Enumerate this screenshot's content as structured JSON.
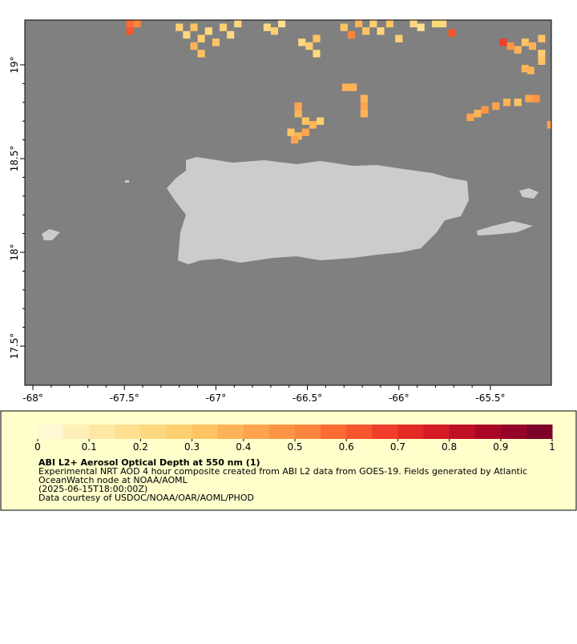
{
  "map": {
    "xlim": [
      -68.044,
      -65.167
    ],
    "ylim": [
      17.291,
      19.239
    ],
    "xticks": [
      {
        "value": -68,
        "label": "-68°"
      },
      {
        "value": -67.5,
        "label": "-67.5°"
      },
      {
        "value": -67,
        "label": "-67°"
      },
      {
        "value": -66.5,
        "label": "-66.5°"
      },
      {
        "value": -66,
        "label": "-66°"
      },
      {
        "value": -65.5,
        "label": "-65.5°"
      }
    ],
    "yticks": [
      {
        "value": 17.5,
        "label": "17.5°"
      },
      {
        "value": 18,
        "label": "18°"
      },
      {
        "value": 18.5,
        "label": "18.5°"
      },
      {
        "value": 19,
        "label": "19°"
      }
    ],
    "aod_cells": [
      [
        -67.47,
        19.22,
        0.55
      ],
      [
        -67.47,
        19.18,
        0.6
      ],
      [
        -67.43,
        19.22,
        0.5
      ],
      [
        -67.2,
        19.2,
        0.25
      ],
      [
        -67.16,
        19.16,
        0.2
      ],
      [
        -67.12,
        19.2,
        0.3
      ],
      [
        -67.08,
        19.14,
        0.25
      ],
      [
        -67.04,
        19.18,
        0.2
      ],
      [
        -67.0,
        19.12,
        0.3
      ],
      [
        -66.96,
        19.2,
        0.25
      ],
      [
        -66.92,
        19.16,
        0.2
      ],
      [
        -67.12,
        19.1,
        0.35
      ],
      [
        -67.08,
        19.06,
        0.3
      ],
      [
        -66.88,
        19.22,
        0.2
      ],
      [
        -66.72,
        19.2,
        0.2
      ],
      [
        -66.68,
        19.18,
        0.25
      ],
      [
        -66.64,
        19.22,
        0.15
      ],
      [
        -66.53,
        19.12,
        0.2
      ],
      [
        -66.49,
        19.1,
        0.25
      ],
      [
        -66.45,
        19.14,
        0.3
      ],
      [
        -66.45,
        19.06,
        0.2
      ],
      [
        -66.3,
        19.2,
        0.3
      ],
      [
        -66.26,
        19.16,
        0.5
      ],
      [
        -66.22,
        19.22,
        0.35
      ],
      [
        -66.18,
        19.18,
        0.3
      ],
      [
        -66.14,
        19.22,
        0.25
      ],
      [
        -66.1,
        19.18,
        0.2
      ],
      [
        -66.05,
        19.22,
        0.3
      ],
      [
        -66.0,
        19.14,
        0.25
      ],
      [
        -65.92,
        19.22,
        0.2
      ],
      [
        -65.88,
        19.2,
        0.15
      ],
      [
        -65.8,
        19.22,
        0.2
      ],
      [
        -65.76,
        19.22,
        0.2
      ],
      [
        -65.71,
        19.17,
        0.6
      ],
      [
        -65.43,
        19.12,
        0.65
      ],
      [
        -65.39,
        19.1,
        0.45
      ],
      [
        -65.35,
        19.08,
        0.35
      ],
      [
        -65.31,
        19.12,
        0.3
      ],
      [
        -65.27,
        19.1,
        0.35
      ],
      [
        -65.22,
        19.14,
        0.3
      ],
      [
        -65.22,
        19.06,
        0.25
      ],
      [
        -65.22,
        19.02,
        0.3
      ],
      [
        -65.31,
        18.98,
        0.35
      ],
      [
        -66.25,
        18.88,
        0.35
      ],
      [
        -66.29,
        18.88,
        0.35
      ],
      [
        -66.55,
        18.78,
        0.4
      ],
      [
        -66.55,
        18.74,
        0.35
      ],
      [
        -66.51,
        18.7,
        0.3
      ],
      [
        -66.47,
        18.68,
        0.35
      ],
      [
        -66.43,
        18.7,
        0.25
      ],
      [
        -66.51,
        18.64,
        0.4
      ],
      [
        -66.55,
        18.62,
        0.35
      ],
      [
        -66.59,
        18.64,
        0.3
      ],
      [
        -66.57,
        18.6,
        0.4
      ],
      [
        -66.19,
        18.82,
        0.35
      ],
      [
        -66.19,
        18.78,
        0.4
      ],
      [
        -66.19,
        18.74,
        0.35
      ],
      [
        -65.61,
        18.72,
        0.4
      ],
      [
        -65.57,
        18.74,
        0.35
      ],
      [
        -65.53,
        18.76,
        0.45
      ],
      [
        -65.47,
        18.78,
        0.4
      ],
      [
        -65.41,
        18.8,
        0.35
      ],
      [
        -65.35,
        18.8,
        0.3
      ],
      [
        -65.29,
        18.82,
        0.4
      ],
      [
        -65.25,
        18.82,
        0.45
      ],
      [
        -65.17,
        18.68,
        0.4
      ],
      [
        -65.28,
        18.97,
        0.35
      ]
    ],
    "colorbar": {
      "range": [
        0,
        1
      ],
      "ticks": [
        0,
        0.1,
        0.2,
        0.3,
        0.4,
        0.5,
        0.6,
        0.7,
        0.8,
        0.9,
        1
      ],
      "colors": [
        "#fff8d4",
        "#fff0b8",
        "#ffe8a4",
        "#fee090",
        "#fed87e",
        "#fecf70",
        "#fec362",
        "#feb456",
        "#fea44c",
        "#fd9444",
        "#fd843c",
        "#fc6c34",
        "#f8562e",
        "#f03e2a",
        "#e42a24",
        "#d41c24",
        "#c01024",
        "#aa0626",
        "#940228",
        "#7c0028"
      ]
    },
    "title": "ABI L2+ Aerosol Optical Depth at 550 nm (1)",
    "description": [
      "Experimental NRT AOD 4 hour composite created from ABI L2 data from GOES-19. Fields generated by Atlantic",
      "OceanWatch node at NOAA/AOML",
      "(2025-06-15T18:00:00Z)",
      "Data courtesy of USDOC/NOAA/OAR/AOML/PHOD"
    ]
  }
}
